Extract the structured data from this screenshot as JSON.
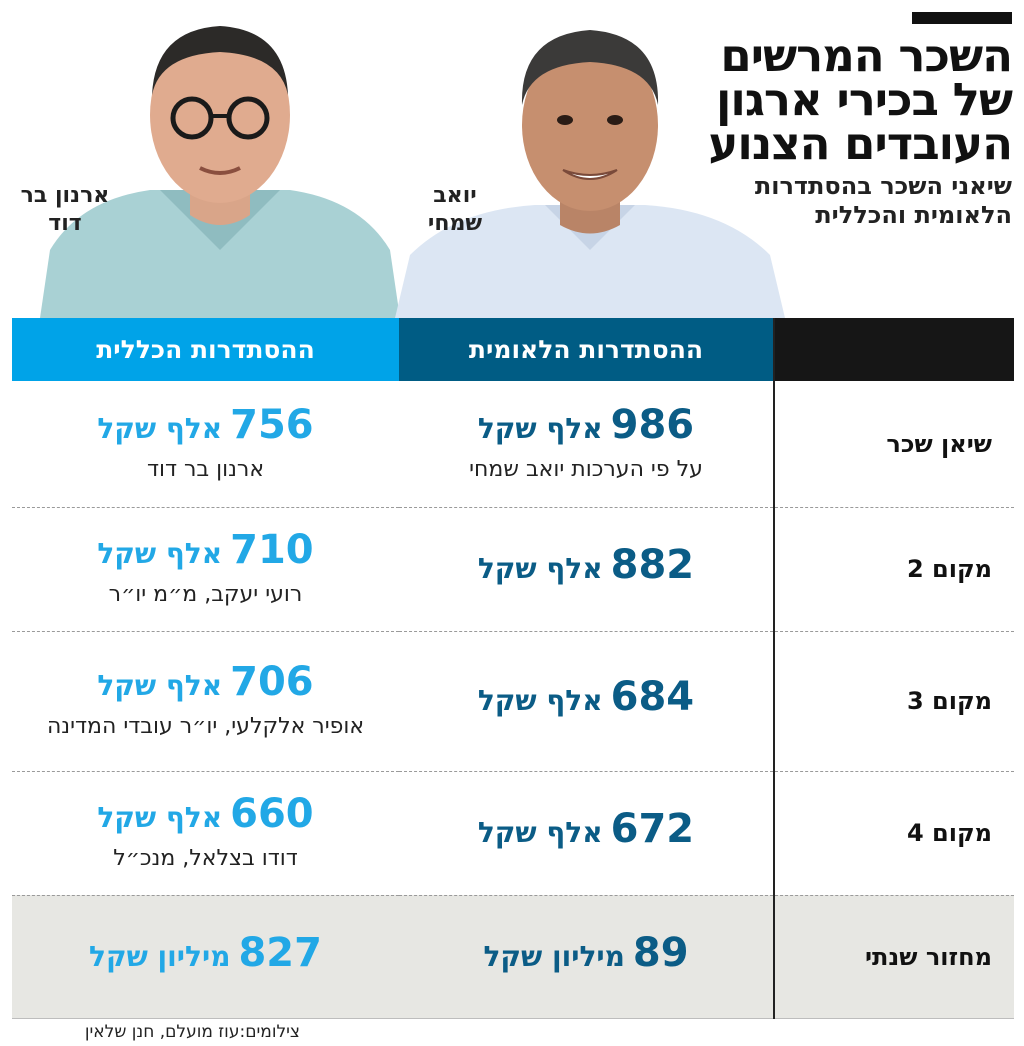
{
  "title": "השכר המרשים של בכירי ארגון העובדים הצנוע",
  "subtitle": "שיאני השכר בהסתדרות הלאומית והכללית",
  "people": {
    "left_caption": "ארנון בר דוד",
    "right_caption": "יואב שמחי"
  },
  "table": {
    "columns": [
      "ההסתדרות הלאומית",
      "ההסתדרות הכללית"
    ],
    "rows": [
      {
        "label": "שיאן שכר",
        "leumit": {
          "value": "986",
          "unit": "אלף שקל",
          "note": "על פי הערכות יואב שמחי"
        },
        "klalit": {
          "value": "756",
          "unit": "אלף שקל",
          "note": "ארנון בר דוד"
        }
      },
      {
        "label": "מקום 2",
        "leumit": {
          "value": "882",
          "unit": "אלף שקל"
        },
        "klalit": {
          "value": "710",
          "unit": "אלף שקל",
          "note": "רועי יעקב, מ״מ יו״ר"
        }
      },
      {
        "label": "מקום 3",
        "leumit": {
          "value": "684",
          "unit": "אלף שקל"
        },
        "klalit": {
          "value": "706",
          "unit": "אלף שקל",
          "note": "אופיר אלקלעי, יו״ר עובדי המדינה"
        }
      },
      {
        "label": "מקום 4",
        "leumit": {
          "value": "672",
          "unit": "אלף שקל"
        },
        "klalit": {
          "value": "660",
          "unit": "אלף שקל",
          "note": "דודו בצלאל, מנכ״ל"
        }
      },
      {
        "label": "מחזור שנתי",
        "leumit": {
          "value": "89",
          "unit": "מיליון שקל"
        },
        "klalit": {
          "value": "827",
          "unit": "מיליון שקל"
        }
      }
    ]
  },
  "credit": "צילומים:עוז מועלם, חנן שלאין",
  "colors": {
    "leumit_header": "#005c84",
    "klalit_header": "#00a3e8",
    "leumit_text": "#0b5c86",
    "klalit_text": "#22a8e6",
    "label_header": "#161616",
    "total_row_bg": "#e7e7e3"
  }
}
